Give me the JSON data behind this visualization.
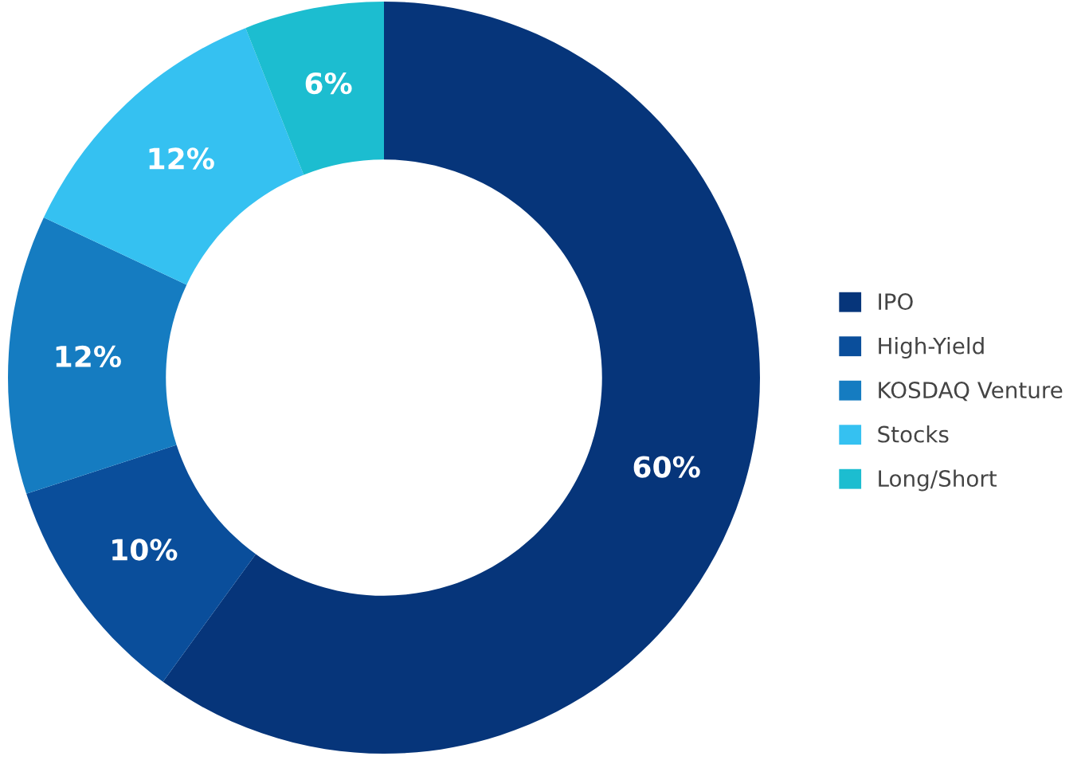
{
  "chart_data": {
    "type": "donut",
    "categories": [
      "IPO",
      "High-Yield",
      "KOSDAQ Venture",
      "Stocks",
      "Long/Short"
    ],
    "values": [
      60,
      10,
      12,
      12,
      6
    ],
    "colors": [
      "#06357a",
      "#0a4e9b",
      "#157cc1",
      "#35c1f1",
      "#1cbdd0"
    ],
    "value_labels": [
      "60%",
      "10%",
      "12%",
      "12%",
      "6%"
    ],
    "legend": "right"
  }
}
